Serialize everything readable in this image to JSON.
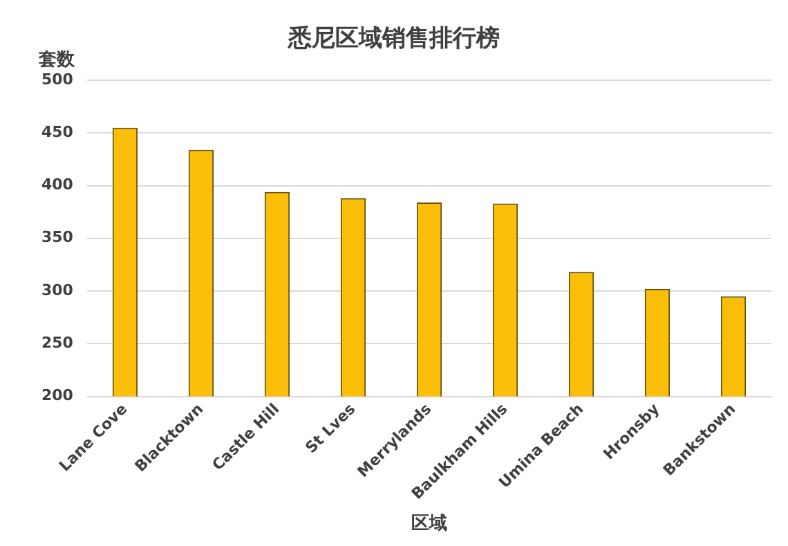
{
  "chart_data": {
    "type": "bar",
    "title": "悉尼区域销售排行榜",
    "xlabel": "区域",
    "ylabel": "套数",
    "categories": [
      "Lane Cove",
      "Blacktown",
      "Castle Hill",
      "St Lves",
      "Merrylands",
      "Baulkham Hills",
      "Umina Beach",
      "Hronsby",
      "Bankstown"
    ],
    "values": [
      455,
      434,
      394,
      388,
      384,
      383,
      318,
      302,
      295
    ],
    "color": "#fbbf0a",
    "ylim": [
      200,
      500
    ],
    "yticks": [
      200,
      250,
      300,
      350,
      400,
      450,
      500
    ],
    "grid": "y",
    "legend": false
  }
}
